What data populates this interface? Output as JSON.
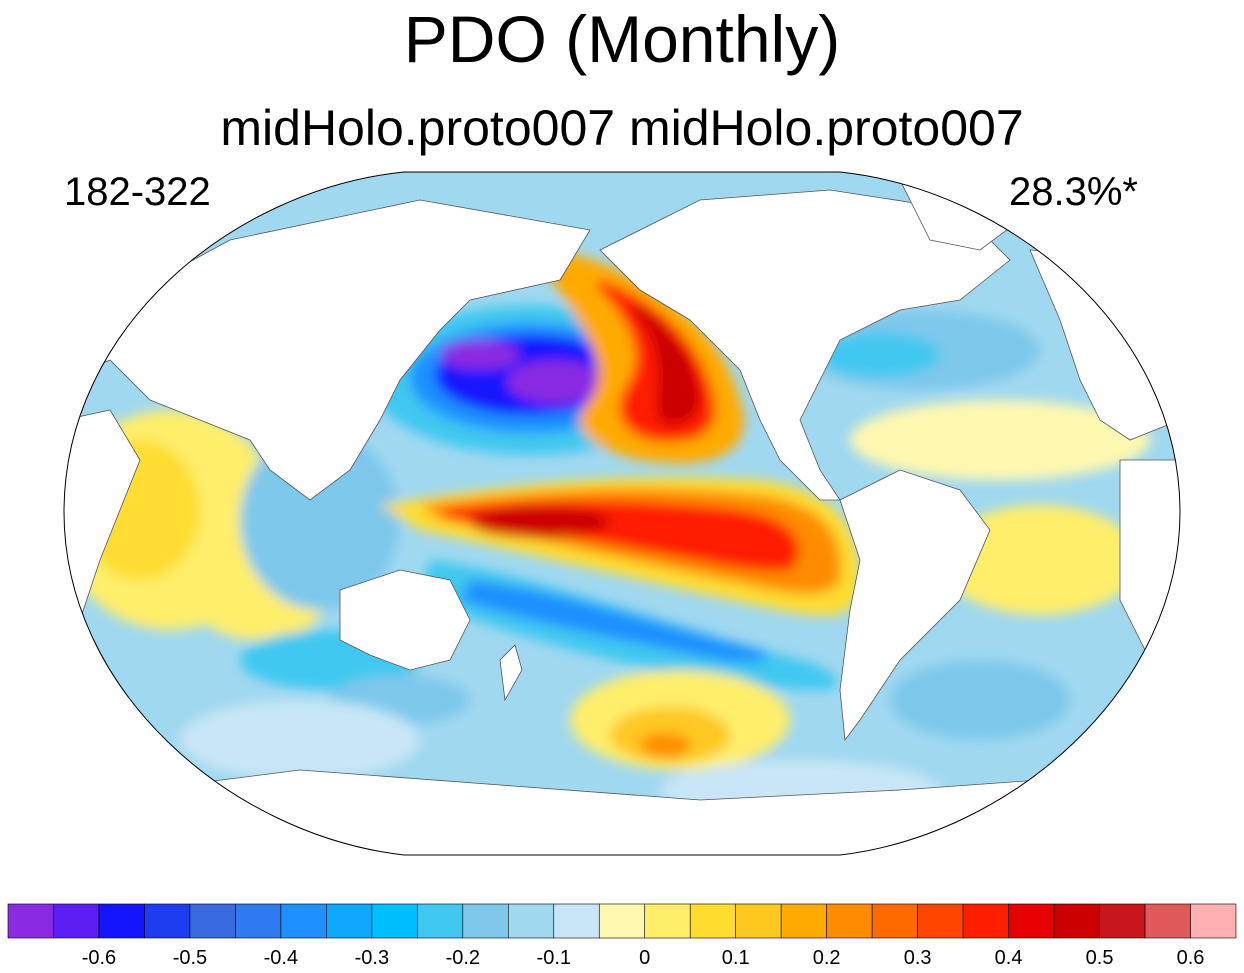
{
  "title": "PDO (Monthly)",
  "subtitle": "midHolo.proto007  midHolo.proto007",
  "left_label": "182-322",
  "right_label": "28.3%*",
  "map": {
    "projection": "Robinson (Pacific-centered)",
    "land_color": "#ffffff",
    "coastline_color": "#555555"
  },
  "colorbar": {
    "colors": [
      "#8a2be2",
      "#5b1ff5",
      "#1414ff",
      "#1e3cf0",
      "#3a6ae0",
      "#2f7aee",
      "#1e90ff",
      "#10a8ff",
      "#00bfff",
      "#40c8f0",
      "#7ec8ec",
      "#a0d8f0",
      "#c8e6f6",
      "#fff8b0",
      "#ffee6a",
      "#ffdd30",
      "#ffc820",
      "#ffaa00",
      "#ff8c00",
      "#ff6a00",
      "#ff4500",
      "#ff1e00",
      "#e60000",
      "#cc0000",
      "#c8161e",
      "#e05a5a",
      "#ffb0b0"
    ],
    "tick_labels": [
      "-0.6",
      "-0.5",
      "-0.4",
      "-0.3",
      "-0.2",
      "-0.1",
      "0",
      "0.1",
      "0.2",
      "0.3",
      "0.4",
      "0.5",
      "0.6"
    ]
  }
}
